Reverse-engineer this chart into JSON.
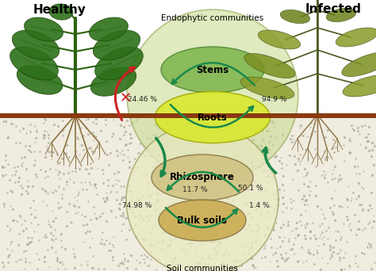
{
  "title_healthy": "Healthy",
  "title_infected": "Infected",
  "endophytic_label": "Endophytic communities",
  "stems_label": "Stems",
  "roots_label": "Roots",
  "rhizosphere_label": "Rhizosphere",
  "bulk_soils_label": "Bulk soils",
  "soil_communities_label": "Soil communities",
  "pct_stems_left": "24.46 %",
  "pct_stems_right": "94.9 %",
  "pct_rhizo_left": "11.7 %",
  "pct_rhizo_right": "50.1 %",
  "pct_bulk_left": "74.98 %",
  "pct_bulk_right": "1.4 %",
  "endo_outer_color": "#c5d98a",
  "stems_color": "#6fad3c",
  "roots_color": "#d8e832",
  "rhizo_outer_color": "#e8e8c0",
  "rhizo_inner_color": "#d0c080",
  "bulk_color": "#c8a84b",
  "arrow_green": "#1a8a4a",
  "arrow_red": "#cc2222",
  "ground_color": "#8b3a10",
  "bg_above": "#ffffff",
  "bg_below": "#e0d8c0",
  "soil_dot_color": "#a0a090",
  "figsize": [
    4.74,
    3.42
  ],
  "dpi": 100
}
